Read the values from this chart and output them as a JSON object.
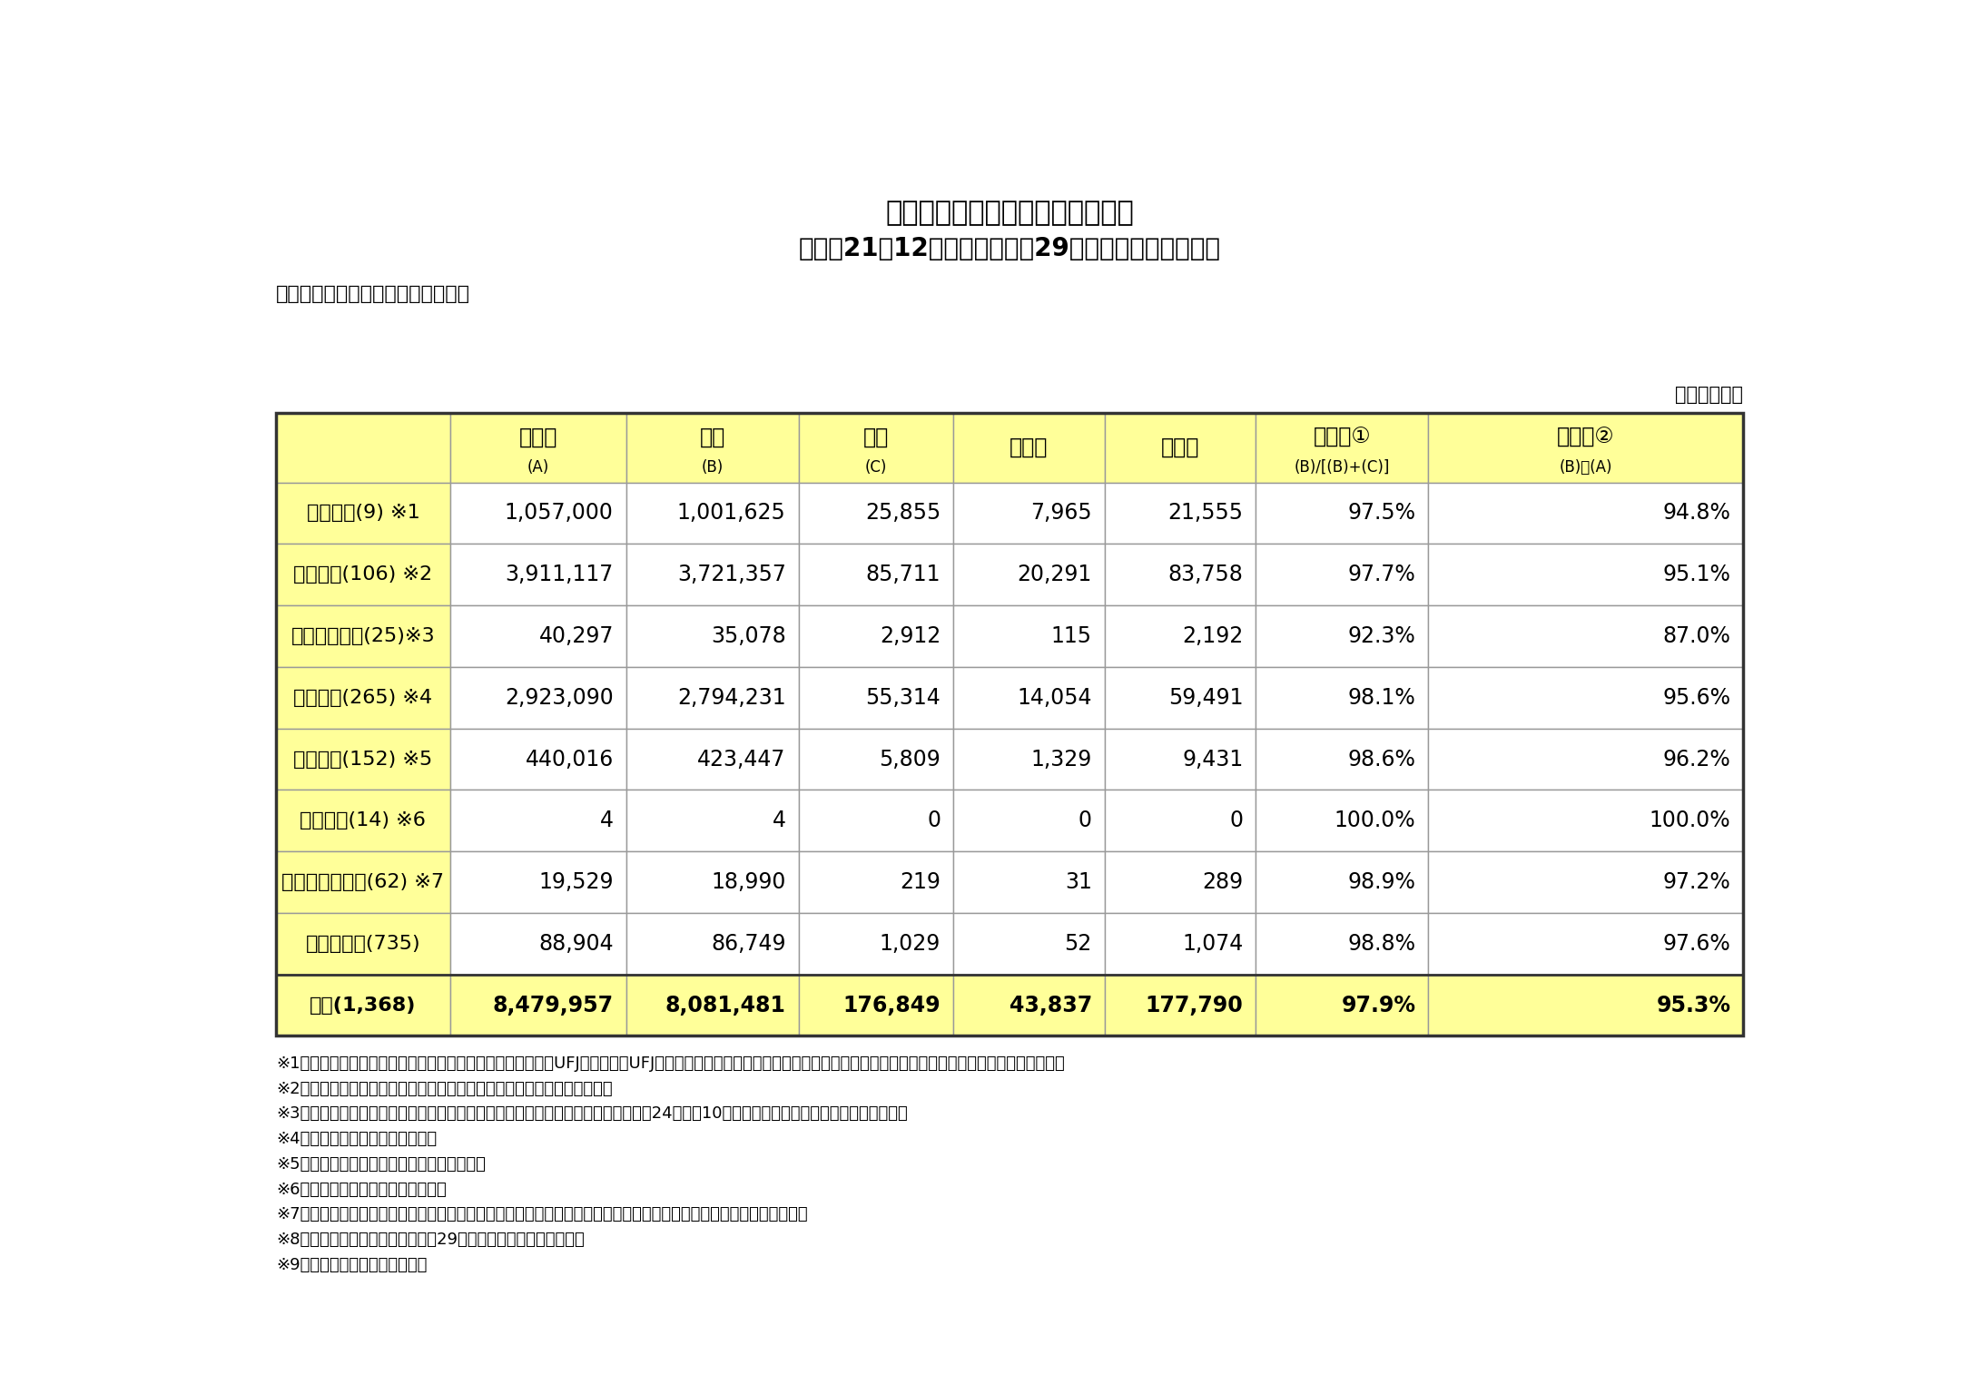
{
  "title_line1": "貸付条件の変更等の状況について",
  "title_line2": "（平成21年12月４日から平成29年３月末までの実績）",
  "section_label": "【債務者が中小企業者である場合】",
  "unit_label": "（単位：件）",
  "col_headers": [
    {
      "main": "申込み",
      "sub": "(A)"
    },
    {
      "main": "実行",
      "sub": "(B)"
    },
    {
      "main": "謝絶",
      "sub": "(C)"
    },
    {
      "main": "審査中",
      "sub": ""
    },
    {
      "main": "取下げ",
      "sub": ""
    },
    {
      "main": "実行率①",
      "sub": "(B)/[(B)+(C)]"
    },
    {
      "main": "実行率②",
      "sub": "(B)／(A)"
    }
  ],
  "rows": [
    {
      "label": "主要行等(9) ※1",
      "values": [
        "1,057,000",
        "1,001,625",
        "25,855",
        "7,965",
        "21,555",
        "97.5%",
        "94.8%"
      ]
    },
    {
      "label": "地域銀行(106) ※2",
      "values": [
        "3,911,117",
        "3,721,357",
        "85,711",
        "20,291",
        "83,758",
        "97.7%",
        "95.1%"
      ]
    },
    {
      "label": "その他の銀行(25)※3",
      "values": [
        "40,297",
        "35,078",
        "2,912",
        "115",
        "2,192",
        "92.3%",
        "87.0%"
      ]
    },
    {
      "label": "信用金庫(265) ※4",
      "values": [
        "2,923,090",
        "2,794,231",
        "55,314",
        "14,054",
        "59,491",
        "98.1%",
        "95.6%"
      ]
    },
    {
      "label": "信用組合(152) ※5",
      "values": [
        "440,016",
        "423,447",
        "5,809",
        "1,329",
        "9,431",
        "98.6%",
        "96.2%"
      ]
    },
    {
      "label": "労働金庫(14) ※6",
      "values": [
        "4",
        "4",
        "0",
        "0",
        "0",
        "100.0%",
        "100.0%"
      ]
    },
    {
      "label": "信農連・信漁連(62) ※7",
      "values": [
        "19,529",
        "18,990",
        "219",
        "31",
        "289",
        "98.9%",
        "97.2%"
      ]
    },
    {
      "label": "農協・漁協(735)",
      "values": [
        "88,904",
        "86,749",
        "1,029",
        "52",
        "1,074",
        "98.8%",
        "97.6%"
      ]
    },
    {
      "label": "合計(1,368)",
      "values": [
        "8,479,957",
        "8,081,481",
        "176,849",
        "43,837",
        "177,790",
        "97.9%",
        "95.3%"
      ]
    }
  ],
  "footnotes": [
    "※1　主要行等とは、みずほ銀行、みずほ信託銀行、三菱東京UFJ銀行、三菱UFJ信託銀行、三井住友銀行、りそな銀行、三井住友信託銀行、新生銀行、あおぞら銀行をいう。",
    "※2　地域銀行とは、地方銀行、第二地方銀行及び埼玉りそな銀行をいう。",
    "※3　その他の銀行とは、主要行等・地域銀行を除く国内銀行をいう。ただし、平成24年９月10日に解散した日本振興銀行の計数を含む。",
    "※4　信金中央金庫の計数を含む。",
    "※5　全国信用協同組合連合会の計数を含む。",
    "※6　労働金庫連合会の計数を含む。",
    "※7　信農連、信漁連はそれぞれ信用農業協同組合連合会、信用漁業協同組合連合会の略。農林中央金庫の計数を含む。",
    "※8　左端の欄中の括弧内は、平成29年３月末時点の金融機関数。",
    "※9　件数は、貸付債権ベース。"
  ],
  "header_bg": "#FFFF99",
  "label_bg": "#FFFF99",
  "data_bg": "#FFFFFF",
  "total_bg": "#FFFF99",
  "border_color": "#999999",
  "thick_border_color": "#333333"
}
